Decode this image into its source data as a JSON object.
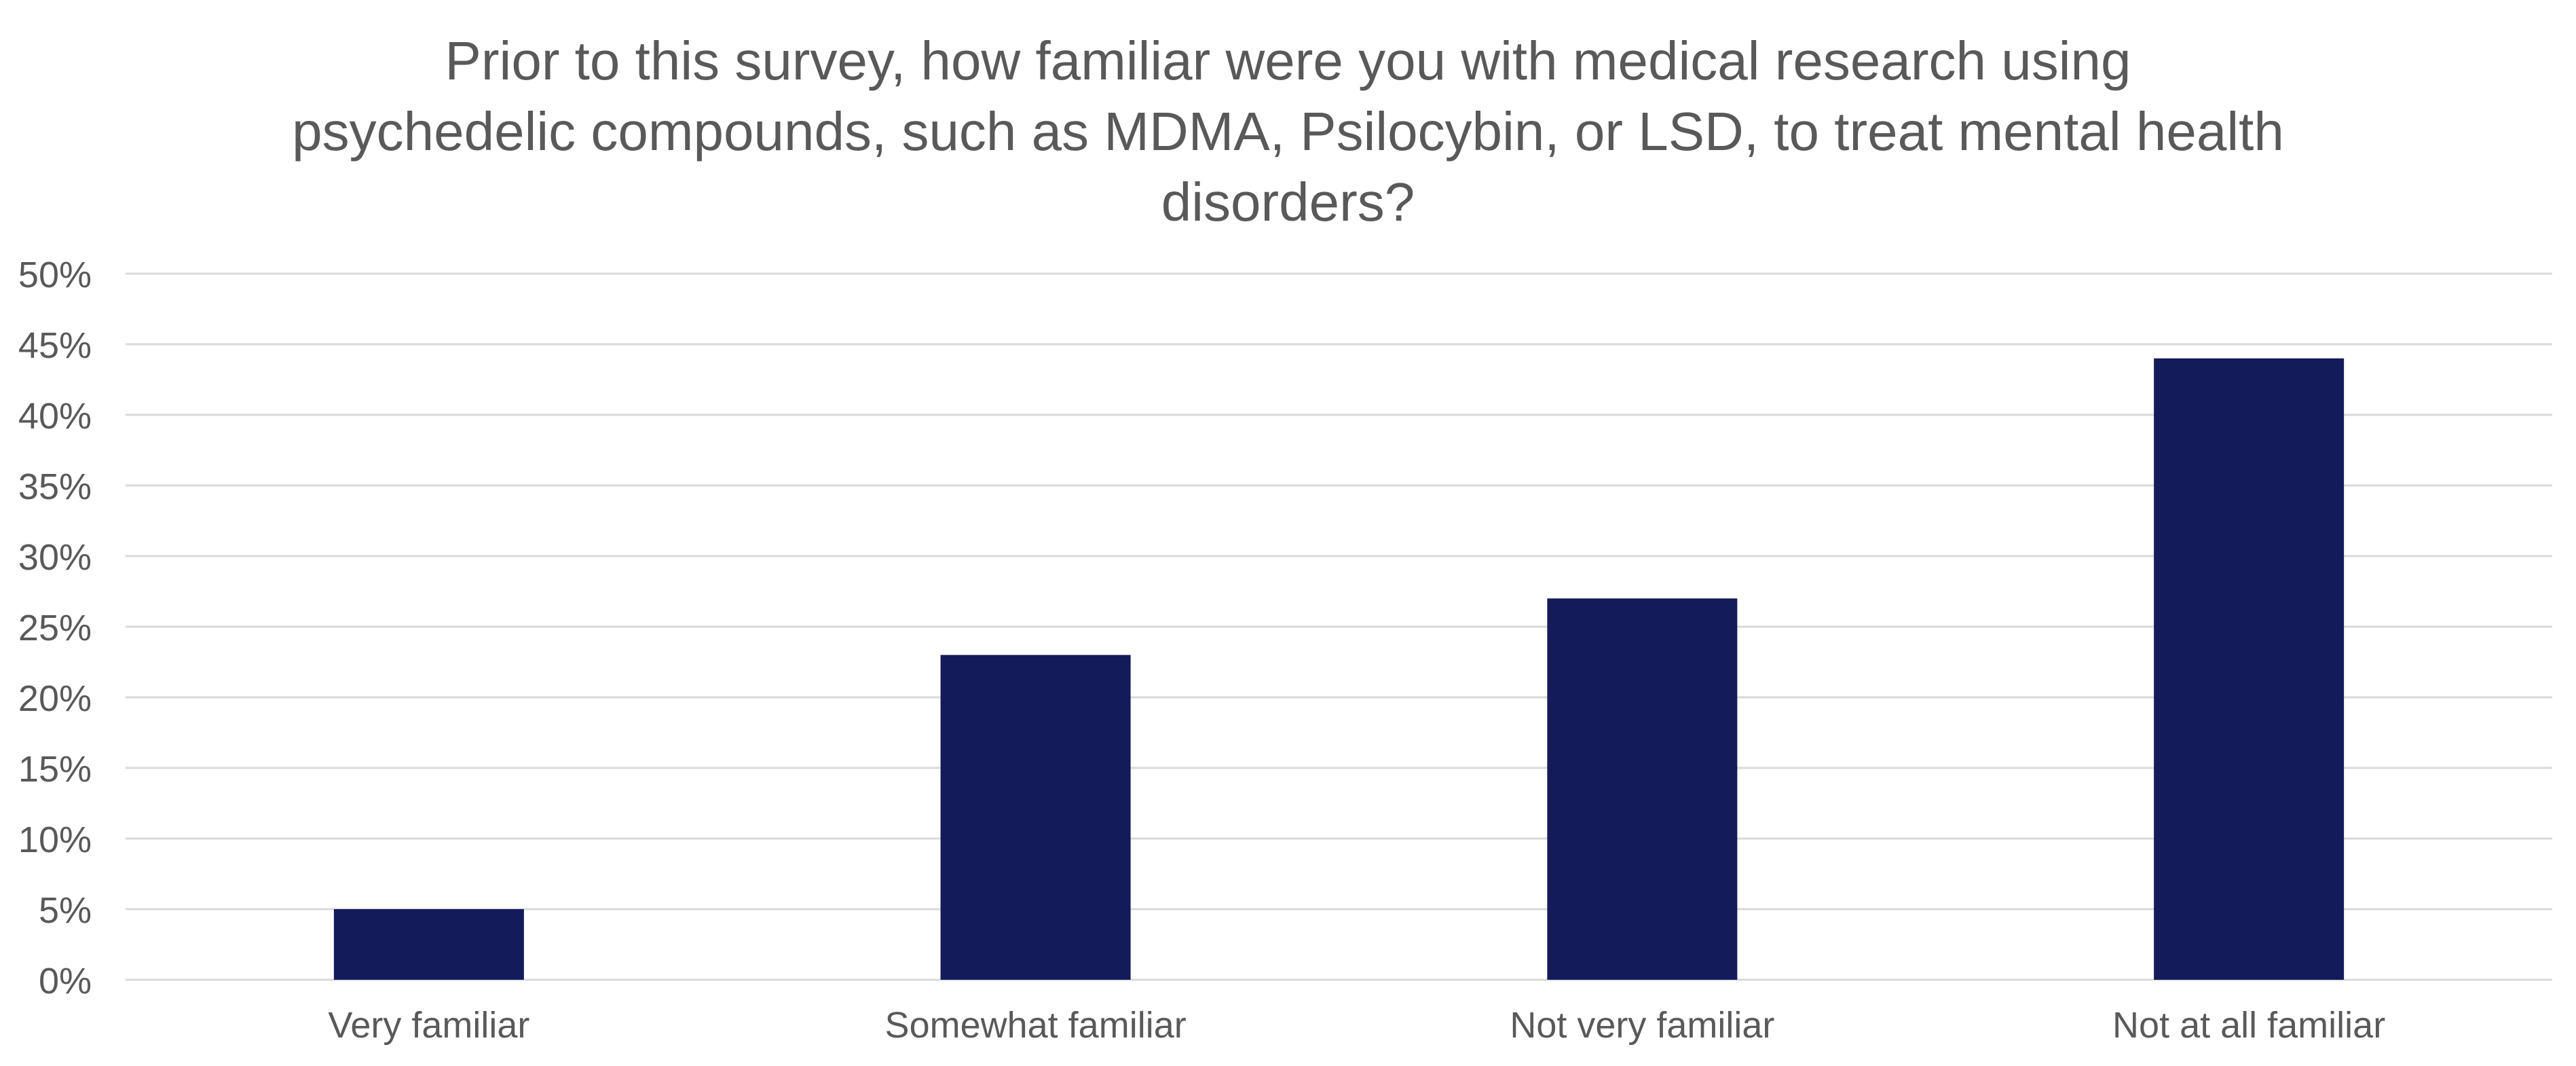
{
  "chart_data": {
    "type": "bar",
    "title": [
      "Prior to this survey, how familiar were you with medical research using",
      "psychedelic compounds, such as MDMA, Psilocybin, or LSD, to treat mental health",
      "disorders?"
    ],
    "categories": [
      "Very familiar",
      "Somewhat familiar",
      "Not very familiar",
      "Not at all familiar"
    ],
    "values": [
      5,
      23,
      27,
      44
    ],
    "value_unit": "%",
    "xlabel": "",
    "ylabel": "",
    "ylim": [
      0,
      50
    ],
    "yticks": [
      "0%",
      "5%",
      "10%",
      "15%",
      "20%",
      "25%",
      "30%",
      "35%",
      "40%",
      "45%",
      "50%"
    ],
    "grid": true,
    "legend": "none",
    "colors": {
      "bar": "#141B5A",
      "grid": "#D9D9D9",
      "text": "#595959"
    }
  }
}
